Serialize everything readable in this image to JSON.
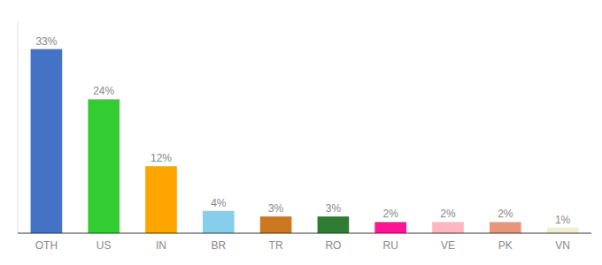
{
  "chart_data": {
    "type": "bar",
    "categories": [
      "OTH",
      "US",
      "IN",
      "BR",
      "TR",
      "RO",
      "RU",
      "VE",
      "PK",
      "VN"
    ],
    "values": [
      33,
      24,
      12,
      4,
      3,
      3,
      2,
      2,
      2,
      1
    ],
    "value_labels": [
      "33%",
      "24%",
      "12%",
      "4%",
      "3%",
      "3%",
      "2%",
      "2%",
      "2%",
      "1%"
    ],
    "colors": [
      "#4472C4",
      "#33CC33",
      "#FFA500",
      "#87CEEB",
      "#CC7722",
      "#2E7D32",
      "#FF1493",
      "#FFB6C1",
      "#E8967A",
      "#F0EDD0"
    ],
    "ylim": [
      0,
      38
    ],
    "data_labels": true,
    "tick_labels": "x",
    "grid": false
  }
}
